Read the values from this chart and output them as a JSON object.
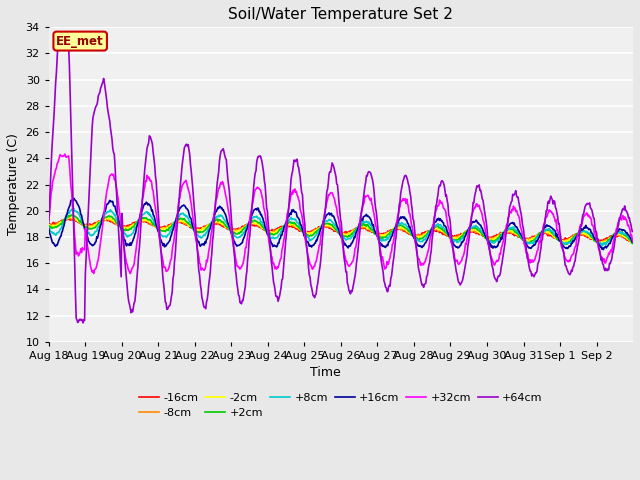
{
  "title": "Soil/Water Temperature Set 2",
  "xlabel": "Time",
  "ylabel": "Temperature (C)",
  "ylim": [
    10,
    34
  ],
  "yticks": [
    10,
    12,
    14,
    16,
    18,
    20,
    22,
    24,
    26,
    28,
    30,
    32,
    34
  ],
  "fig_bg": "#e8e8e8",
  "plot_bg": "#f0f0f0",
  "annotation_text": "EE_met",
  "annotation_bg": "#ffff99",
  "annotation_border": "#cc0000",
  "annotation_text_color": "#990000",
  "series_colors": {
    "-16cm": "#ff0000",
    "-8cm": "#ff8800",
    "-2cm": "#ffff00",
    "+2cm": "#00cc00",
    "+8cm": "#00cccc",
    "+16cm": "#000099",
    "+32cm": "#ff00ff",
    "+64cm": "#9900cc"
  },
  "lw": 1.2,
  "n_days": 16,
  "x_tick_labels": [
    "Aug 18",
    "Aug 19",
    "Aug 20",
    "Aug 21",
    "Aug 22",
    "Aug 23",
    "Aug 24",
    "Aug 25",
    "Aug 26",
    "Aug 27",
    "Aug 28",
    "Aug 29",
    "Aug 30",
    "Aug 31",
    "Sep 1",
    "Sep 2"
  ]
}
